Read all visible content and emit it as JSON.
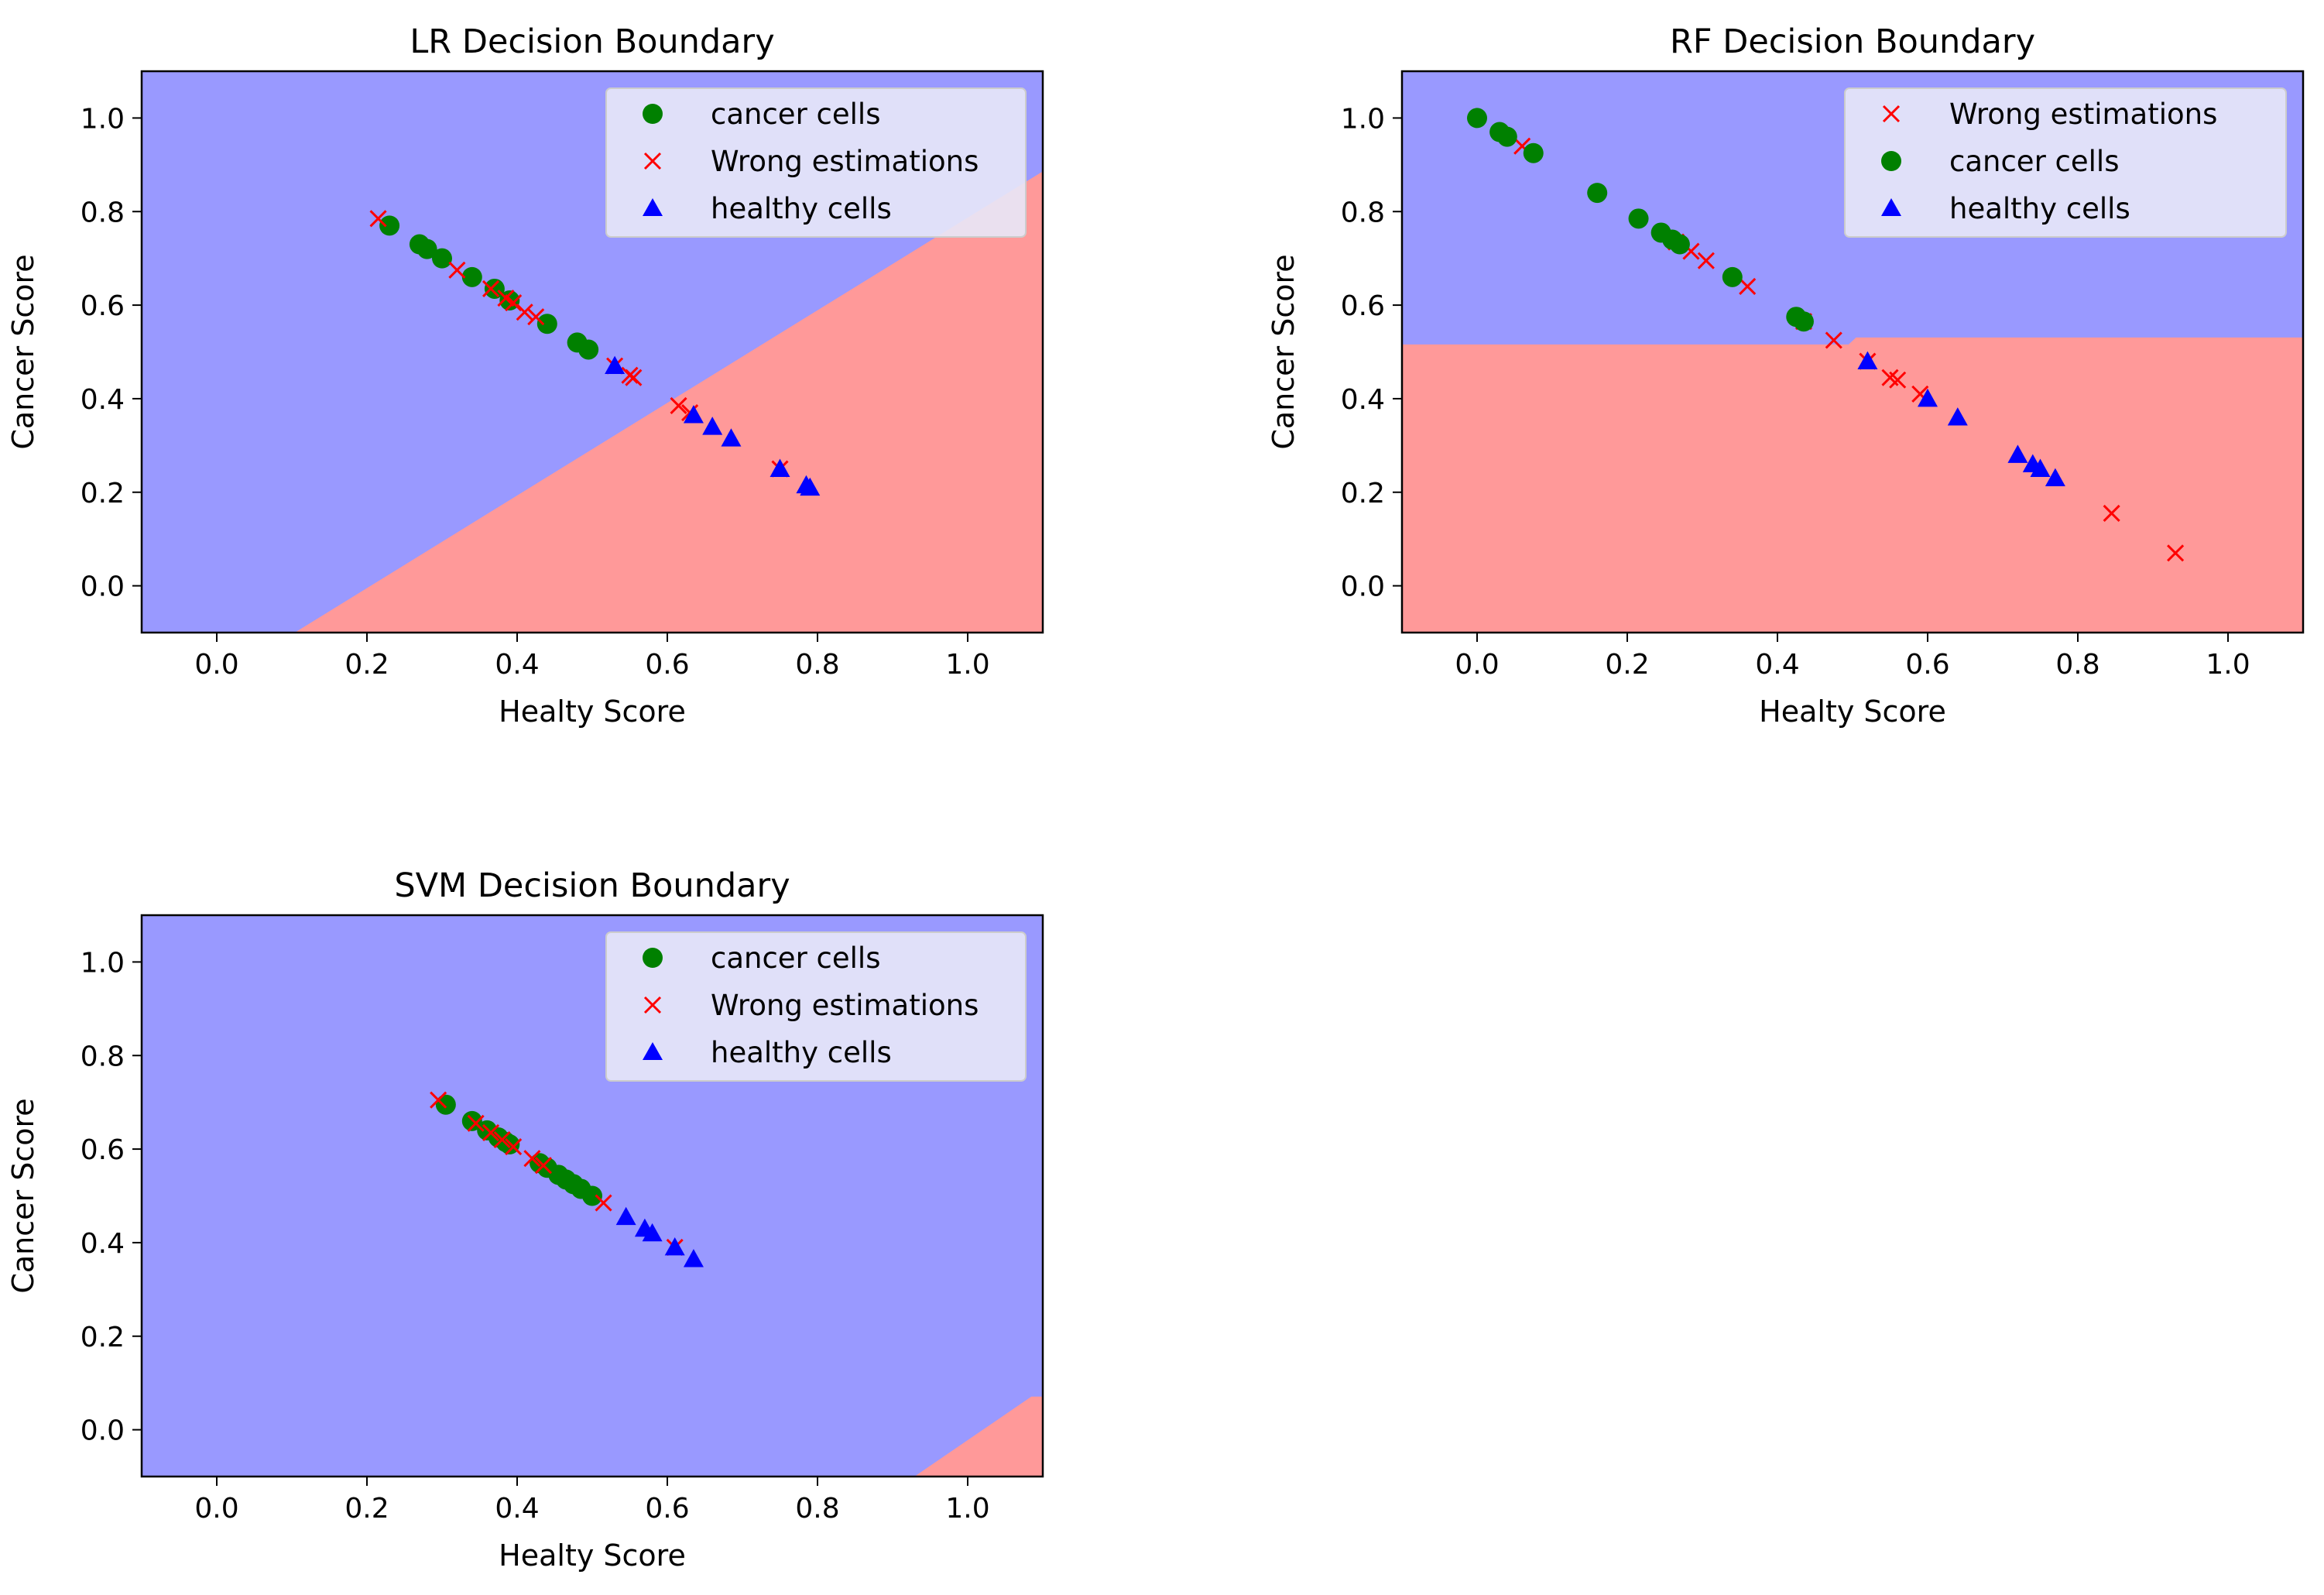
{
  "colors": {
    "blue_region": "#9999ff",
    "red_region": "#ff9999",
    "cancer_marker": "#008000",
    "wrong_marker": "#ff0000",
    "healthy_marker": "#0000ff",
    "legend_bg": "#e8e8f8"
  },
  "chart_data": [
    {
      "type": "scatter",
      "title": "LR Decision Boundary",
      "xlabel": "Healty Score",
      "ylabel": "Cancer Score",
      "xlim": [
        -0.1,
        1.1
      ],
      "ylim": [
        -0.1,
        1.1
      ],
      "xticks": [
        "0.0",
        "0.2",
        "0.4",
        "0.6",
        "0.8",
        "1.0"
      ],
      "yticks": [
        "0.0",
        "0.2",
        "0.4",
        "0.6",
        "0.8",
        "1.0"
      ],
      "legend_position": "top-right",
      "legend": [
        "cancer cells",
        "Wrong estimations",
        "healthy cells"
      ],
      "regions": [
        {
          "color": "blue",
          "polygon": [
            [
              -0.1,
              -0.1
            ],
            [
              0.105,
              -0.1
            ],
            [
              1.1,
              0.885
            ],
            [
              1.1,
              1.1
            ],
            [
              -0.1,
              1.1
            ]
          ]
        },
        {
          "color": "red",
          "polygon": [
            [
              0.105,
              -0.1
            ],
            [
              1.1,
              -0.1
            ],
            [
              1.1,
              0.885
            ]
          ]
        }
      ],
      "series": [
        {
          "name": "cancer cells",
          "marker": "circle",
          "points": [
            [
              0.23,
              0.77
            ],
            [
              0.27,
              0.73
            ],
            [
              0.28,
              0.72
            ],
            [
              0.3,
              0.7
            ],
            [
              0.34,
              0.66
            ],
            [
              0.37,
              0.635
            ],
            [
              0.39,
              0.61
            ],
            [
              0.44,
              0.56
            ],
            [
              0.48,
              0.52
            ],
            [
              0.495,
              0.505
            ]
          ]
        },
        {
          "name": "Wrong estimations",
          "marker": "x",
          "points": [
            [
              0.215,
              0.785
            ],
            [
              0.32,
              0.675
            ],
            [
              0.365,
              0.635
            ],
            [
              0.385,
              0.615
            ],
            [
              0.395,
              0.605
            ],
            [
              0.41,
              0.585
            ],
            [
              0.425,
              0.575
            ],
            [
              0.53,
              0.47
            ],
            [
              0.55,
              0.45
            ],
            [
              0.555,
              0.445
            ],
            [
              0.615,
              0.385
            ],
            [
              0.63,
              0.37
            ],
            [
              0.75,
              0.25
            ]
          ]
        },
        {
          "name": "healthy cells",
          "marker": "triangle",
          "points": [
            [
              0.53,
              0.47
            ],
            [
              0.635,
              0.365
            ],
            [
              0.66,
              0.34
            ],
            [
              0.685,
              0.315
            ],
            [
              0.75,
              0.25
            ],
            [
              0.785,
              0.215
            ],
            [
              0.79,
              0.21
            ]
          ]
        }
      ]
    },
    {
      "type": "scatter",
      "title": "RF Decision Boundary",
      "xlabel": "Healty Score",
      "ylabel": "Cancer Score",
      "xlim": [
        -0.1,
        1.1
      ],
      "ylim": [
        -0.1,
        1.1
      ],
      "xticks": [
        "0.0",
        "0.2",
        "0.4",
        "0.6",
        "0.8",
        "1.0"
      ],
      "yticks": [
        "0.0",
        "0.2",
        "0.4",
        "0.6",
        "0.8",
        "1.0"
      ],
      "legend_position": "top-right",
      "legend": [
        "Wrong estimations",
        "cancer cells",
        "healthy cells"
      ],
      "regions": [
        {
          "color": "blue",
          "polygon": [
            [
              -0.1,
              0.515
            ],
            [
              0.495,
              0.515
            ],
            [
              0.505,
              0.53
            ],
            [
              1.1,
              0.53
            ],
            [
              1.1,
              1.1
            ],
            [
              -0.1,
              1.1
            ]
          ]
        },
        {
          "color": "red",
          "polygon": [
            [
              -0.1,
              -0.1
            ],
            [
              1.1,
              -0.1
            ],
            [
              1.1,
              0.53
            ],
            [
              0.505,
              0.53
            ],
            [
              0.495,
              0.515
            ],
            [
              -0.1,
              0.515
            ]
          ]
        }
      ],
      "series": [
        {
          "name": "Wrong estimations",
          "marker": "x",
          "points": [
            [
              0.06,
              0.94
            ],
            [
              0.265,
              0.735
            ],
            [
              0.285,
              0.715
            ],
            [
              0.305,
              0.695
            ],
            [
              0.36,
              0.64
            ],
            [
              0.435,
              0.565
            ],
            [
              0.475,
              0.525
            ],
            [
              0.52,
              0.48
            ],
            [
              0.55,
              0.445
            ],
            [
              0.56,
              0.44
            ],
            [
              0.59,
              0.41
            ],
            [
              0.845,
              0.155
            ],
            [
              0.93,
              0.07
            ]
          ]
        },
        {
          "name": "cancer cells",
          "marker": "circle",
          "points": [
            [
              0.0,
              1.0
            ],
            [
              0.03,
              0.97
            ],
            [
              0.04,
              0.96
            ],
            [
              0.075,
              0.925
            ],
            [
              0.16,
              0.84
            ],
            [
              0.215,
              0.785
            ],
            [
              0.245,
              0.755
            ],
            [
              0.26,
              0.74
            ],
            [
              0.27,
              0.73
            ],
            [
              0.34,
              0.66
            ],
            [
              0.425,
              0.575
            ],
            [
              0.435,
              0.565
            ]
          ]
        },
        {
          "name": "healthy cells",
          "marker": "triangle",
          "points": [
            [
              0.52,
              0.48
            ],
            [
              0.6,
              0.4
            ],
            [
              0.64,
              0.36
            ],
            [
              0.72,
              0.28
            ],
            [
              0.74,
              0.26
            ],
            [
              0.75,
              0.25
            ],
            [
              0.77,
              0.23
            ]
          ]
        }
      ]
    },
    {
      "type": "scatter",
      "title": "SVM Decision Boundary",
      "xlabel": "Healty Score",
      "ylabel": "Cancer Score",
      "xlim": [
        -0.1,
        1.1
      ],
      "ylim": [
        -0.1,
        1.1
      ],
      "xticks": [
        "0.0",
        "0.2",
        "0.4",
        "0.6",
        "0.8",
        "1.0"
      ],
      "yticks": [
        "0.0",
        "0.2",
        "0.4",
        "0.6",
        "0.8",
        "1.0"
      ],
      "legend_position": "top-right",
      "legend": [
        "cancer cells",
        "Wrong estimations",
        "healthy cells"
      ],
      "regions": [
        {
          "color": "blue",
          "polygon": [
            [
              -0.1,
              -0.1
            ],
            [
              0.93,
              -0.1
            ],
            [
              1.085,
              0.07
            ],
            [
              1.1,
              0.07
            ],
            [
              1.1,
              1.1
            ],
            [
              -0.1,
              1.1
            ]
          ]
        },
        {
          "color": "red",
          "polygon": [
            [
              0.93,
              -0.1
            ],
            [
              1.1,
              -0.1
            ],
            [
              1.1,
              0.07
            ],
            [
              1.085,
              0.07
            ]
          ]
        }
      ],
      "series": [
        {
          "name": "cancer cells",
          "marker": "circle",
          "points": [
            [
              0.305,
              0.695
            ],
            [
              0.34,
              0.66
            ],
            [
              0.36,
              0.64
            ],
            [
              0.375,
              0.625
            ],
            [
              0.385,
              0.615
            ],
            [
              0.39,
              0.61
            ],
            [
              0.43,
              0.57
            ],
            [
              0.44,
              0.56
            ],
            [
              0.455,
              0.545
            ],
            [
              0.465,
              0.535
            ],
            [
              0.475,
              0.525
            ],
            [
              0.485,
              0.515
            ],
            [
              0.5,
              0.5
            ]
          ]
        },
        {
          "name": "Wrong estimations",
          "marker": "x",
          "points": [
            [
              0.295,
              0.705
            ],
            [
              0.345,
              0.655
            ],
            [
              0.365,
              0.635
            ],
            [
              0.38,
              0.62
            ],
            [
              0.395,
              0.605
            ],
            [
              0.42,
              0.58
            ],
            [
              0.435,
              0.565
            ],
            [
              0.515,
              0.485
            ],
            [
              0.61,
              0.39
            ]
          ]
        },
        {
          "name": "healthy cells",
          "marker": "triangle",
          "points": [
            [
              0.545,
              0.455
            ],
            [
              0.57,
              0.43
            ],
            [
              0.58,
              0.42
            ],
            [
              0.61,
              0.39
            ],
            [
              0.635,
              0.365
            ]
          ]
        }
      ]
    }
  ]
}
